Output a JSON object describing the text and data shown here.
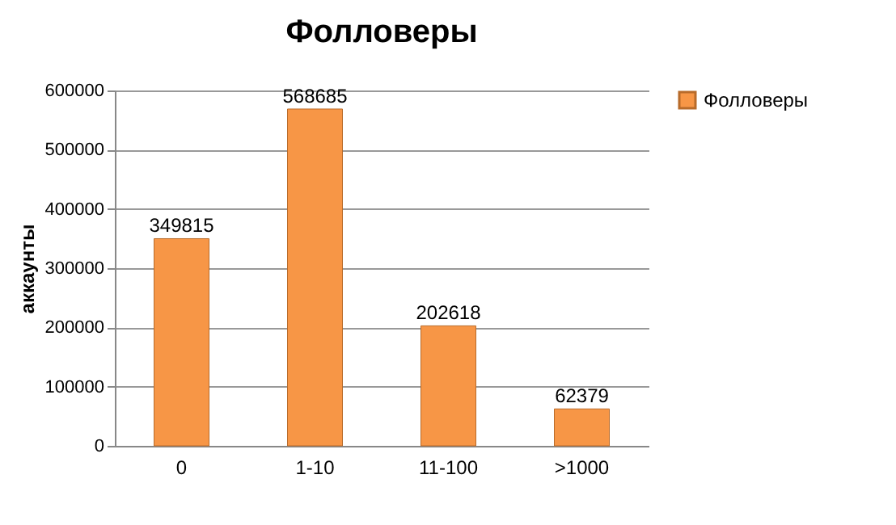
{
  "chart_data": {
    "type": "bar",
    "title": "Фолловеры",
    "ylabel": "аккаунты",
    "categories": [
      "0",
      "1-10",
      "11-100",
      ">1000"
    ],
    "series": [
      {
        "name": "Фолловеры",
        "color": "#f79646",
        "values": [
          349815,
          568685,
          202618,
          62379
        ]
      }
    ],
    "ylim": [
      0,
      600000
    ],
    "yticks": [
      0,
      100000,
      200000,
      300000,
      400000,
      500000,
      600000
    ],
    "grid": "y",
    "legend": "right",
    "data_labels": true
  }
}
